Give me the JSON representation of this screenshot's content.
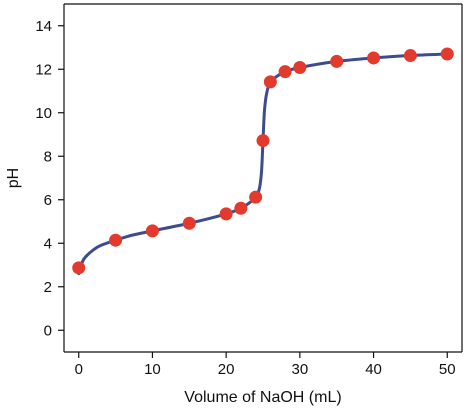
{
  "chart_data": {
    "type": "line",
    "title": "",
    "xlabel": "Volume of NaOH (mL)",
    "ylabel": "pH",
    "xlim": [
      -2,
      52
    ],
    "ylim": [
      -1,
      15
    ],
    "x_ticks": [
      0,
      10,
      20,
      30,
      40,
      50
    ],
    "y_ticks": [
      0,
      2,
      4,
      6,
      8,
      10,
      12,
      14
    ],
    "grid": false,
    "legend": "none",
    "colors": {
      "curve": "#3d4b8f",
      "points": "#e23b2e",
      "axes": "#111111"
    },
    "series": [
      {
        "type": "scatter",
        "x": [
          0,
          5,
          10,
          15,
          20,
          22,
          24,
          25,
          26,
          28,
          30,
          35,
          40,
          45,
          50
        ],
        "y": [
          2.87,
          4.14,
          4.57,
          4.92,
          5.35,
          5.61,
          6.12,
          8.72,
          11.42,
          11.89,
          12.08,
          12.36,
          12.52,
          12.63,
          12.7
        ]
      },
      {
        "type": "line",
        "x": [
          0,
          0.5,
          1,
          2,
          3,
          5,
          7,
          10,
          15,
          20,
          22,
          23,
          24,
          24.5,
          24.8,
          25,
          25.2,
          25.5,
          26,
          27,
          28,
          30,
          35,
          40,
          45,
          50
        ],
        "y": [
          2.6,
          3.15,
          3.4,
          3.7,
          3.9,
          4.14,
          4.35,
          4.57,
          4.92,
          5.35,
          5.61,
          5.82,
          6.12,
          6.5,
          7.3,
          8.72,
          10.1,
          10.9,
          11.42,
          11.7,
          11.89,
          12.08,
          12.36,
          12.52,
          12.63,
          12.7
        ]
      }
    ]
  }
}
